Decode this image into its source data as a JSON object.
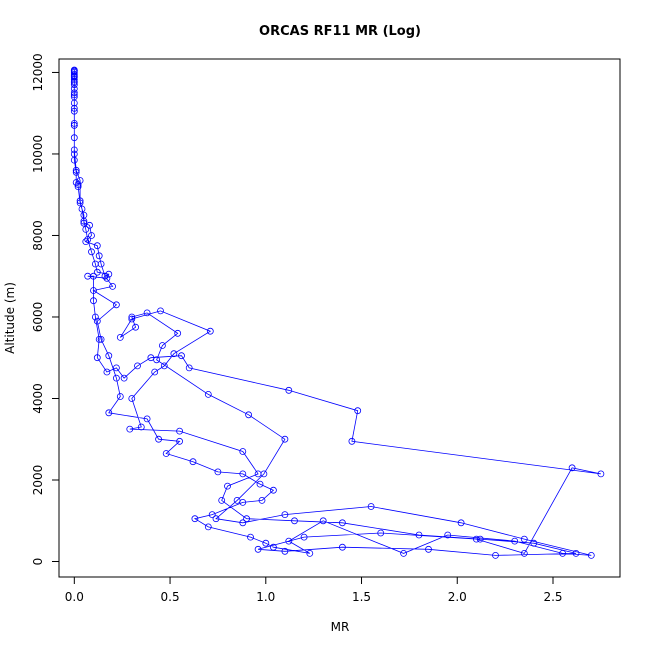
{
  "chart_data": {
    "type": "scatter",
    "title": "ORCAS RF11 MR (Log)",
    "xlabel": "MR",
    "ylabel": "Altitude (m)",
    "xlim": [
      -0.08,
      2.85
    ],
    "ylim": [
      -380,
      12330
    ],
    "xticks": [
      0.0,
      0.5,
      1.0,
      1.5,
      2.0,
      2.5
    ],
    "xtick_labels": [
      "0.0",
      "0.5",
      "1.0",
      "1.5",
      "2.0",
      "2.5"
    ],
    "yticks": [
      0,
      2000,
      4000,
      6000,
      8000,
      10000,
      12000
    ],
    "ytick_labels": [
      "0",
      "2000",
      "4000",
      "6000",
      "8000",
      "10000",
      "12000"
    ],
    "grid": false,
    "legend": "none",
    "series_color": "#0000ff",
    "series": [
      {
        "points": [
          [
            0.0,
            12060
          ],
          [
            0.0,
            12030
          ],
          [
            0.0,
            12000
          ],
          [
            0.0,
            11960
          ],
          [
            0.0,
            11920
          ],
          [
            0.0,
            11880
          ],
          [
            0.0,
            11830
          ],
          [
            0.0,
            11780
          ],
          [
            0.0,
            11700
          ],
          [
            0.0,
            11600
          ],
          [
            0.0,
            11450
          ],
          [
            0.0,
            11400
          ],
          [
            0.0,
            11120
          ],
          [
            0.0,
            11050
          ],
          [
            0.0,
            10750
          ],
          [
            0.0,
            10700
          ],
          [
            0.0,
            10400
          ],
          [
            0.0,
            10000
          ],
          [
            0.0,
            9850
          ],
          [
            0.01,
            9550
          ],
          [
            0.01,
            9300
          ],
          [
            0.02,
            9250
          ],
          [
            0.02,
            9200
          ],
          [
            0.03,
            8800
          ],
          [
            0.05,
            8500
          ],
          [
            0.05,
            8300
          ],
          [
            0.08,
            8250
          ],
          [
            0.09,
            8000
          ],
          [
            0.06,
            7850
          ],
          [
            0.12,
            7750
          ],
          [
            0.13,
            7500
          ],
          [
            0.14,
            7300
          ],
          [
            0.16,
            7000
          ],
          [
            0.2,
            6750
          ],
          [
            0.1,
            6650
          ],
          [
            0.22,
            6300
          ],
          [
            0.12,
            5900
          ],
          [
            0.14,
            5450
          ],
          [
            0.18,
            5050
          ],
          [
            0.22,
            4500
          ],
          [
            0.24,
            4050
          ],
          [
            0.18,
            3650
          ],
          [
            0.38,
            3500
          ],
          [
            0.44,
            3000
          ],
          [
            0.55,
            2950
          ],
          [
            0.48,
            2650
          ],
          [
            0.62,
            2450
          ],
          [
            0.75,
            2200
          ],
          [
            0.88,
            2150
          ],
          [
            0.97,
            1900
          ],
          [
            1.04,
            1750
          ],
          [
            0.98,
            1500
          ],
          [
            0.88,
            1450
          ],
          [
            0.72,
            1150
          ],
          [
            0.63,
            1050
          ],
          [
            0.7,
            850
          ],
          [
            0.92,
            600
          ],
          [
            1.0,
            450
          ],
          [
            1.04,
            350
          ],
          [
            1.23,
            200
          ],
          [
            1.12,
            500
          ],
          [
            1.3,
            1000
          ],
          [
            1.72,
            200
          ],
          [
            1.95,
            650
          ],
          [
            2.3,
            500
          ],
          [
            2.55,
            200
          ],
          [
            2.7,
            150
          ],
          [
            2.35,
            550
          ],
          [
            2.02,
            950
          ],
          [
            1.55,
            1350
          ],
          [
            1.1,
            1150
          ],
          [
            0.88,
            950
          ],
          [
            0.74,
            1050
          ],
          [
            0.85,
            1500
          ],
          [
            0.99,
            2150
          ],
          [
            1.1,
            3000
          ],
          [
            0.91,
            3600
          ],
          [
            0.7,
            4100
          ],
          [
            0.43,
            4950
          ],
          [
            0.46,
            5300
          ],
          [
            0.54,
            5600
          ],
          [
            0.38,
            6100
          ],
          [
            0.3,
            6000
          ],
          [
            0.32,
            5750
          ],
          [
            0.24,
            5500
          ],
          [
            0.3,
            5950
          ],
          [
            0.45,
            6150
          ],
          [
            0.71,
            5650
          ],
          [
            0.52,
            5100
          ],
          [
            0.47,
            4800
          ],
          [
            0.42,
            4650
          ],
          [
            0.3,
            4000
          ],
          [
            0.35,
            3300
          ],
          [
            0.29,
            3250
          ],
          [
            0.55,
            3200
          ],
          [
            0.88,
            2700
          ],
          [
            0.96,
            2150
          ],
          [
            0.8,
            1850
          ],
          [
            0.77,
            1500
          ],
          [
            0.9,
            1050
          ],
          [
            1.15,
            1000
          ],
          [
            1.4,
            950
          ],
          [
            1.8,
            650
          ],
          [
            2.12,
            550
          ],
          [
            2.4,
            450
          ],
          [
            2.62,
            200
          ],
          [
            2.2,
            150
          ],
          [
            1.85,
            300
          ],
          [
            1.4,
            350
          ],
          [
            1.1,
            250
          ],
          [
            0.96,
            300
          ],
          [
            1.2,
            600
          ],
          [
            1.6,
            700
          ],
          [
            2.1,
            550
          ],
          [
            2.35,
            200
          ],
          [
            2.6,
            2300
          ],
          [
            2.75,
            2150
          ],
          [
            1.45,
            2950
          ],
          [
            1.48,
            3700
          ],
          [
            1.12,
            4200
          ],
          [
            0.6,
            4750
          ],
          [
            0.56,
            5050
          ],
          [
            0.4,
            5000
          ],
          [
            0.33,
            4800
          ],
          [
            0.26,
            4500
          ],
          [
            0.22,
            4750
          ],
          [
            0.17,
            4650
          ],
          [
            0.12,
            5000
          ],
          [
            0.13,
            5450
          ],
          [
            0.11,
            6000
          ],
          [
            0.1,
            6400
          ],
          [
            0.1,
            7000
          ],
          [
            0.07,
            7000
          ],
          [
            0.17,
            6950
          ],
          [
            0.18,
            7050
          ],
          [
            0.12,
            7100
          ],
          [
            0.11,
            7300
          ],
          [
            0.09,
            7600
          ],
          [
            0.07,
            7900
          ],
          [
            0.06,
            8150
          ],
          [
            0.05,
            8350
          ],
          [
            0.04,
            8650
          ],
          [
            0.03,
            8850
          ],
          [
            0.03,
            9350
          ],
          [
            0.01,
            9600
          ],
          [
            0.0,
            10100
          ],
          [
            0.0,
            10700
          ],
          [
            0.0,
            11250
          ],
          [
            0.0,
            11500
          ],
          [
            0.0,
            11750
          ],
          [
            0.0,
            11900
          ],
          [
            0.0,
            12050
          ]
        ]
      }
    ]
  }
}
